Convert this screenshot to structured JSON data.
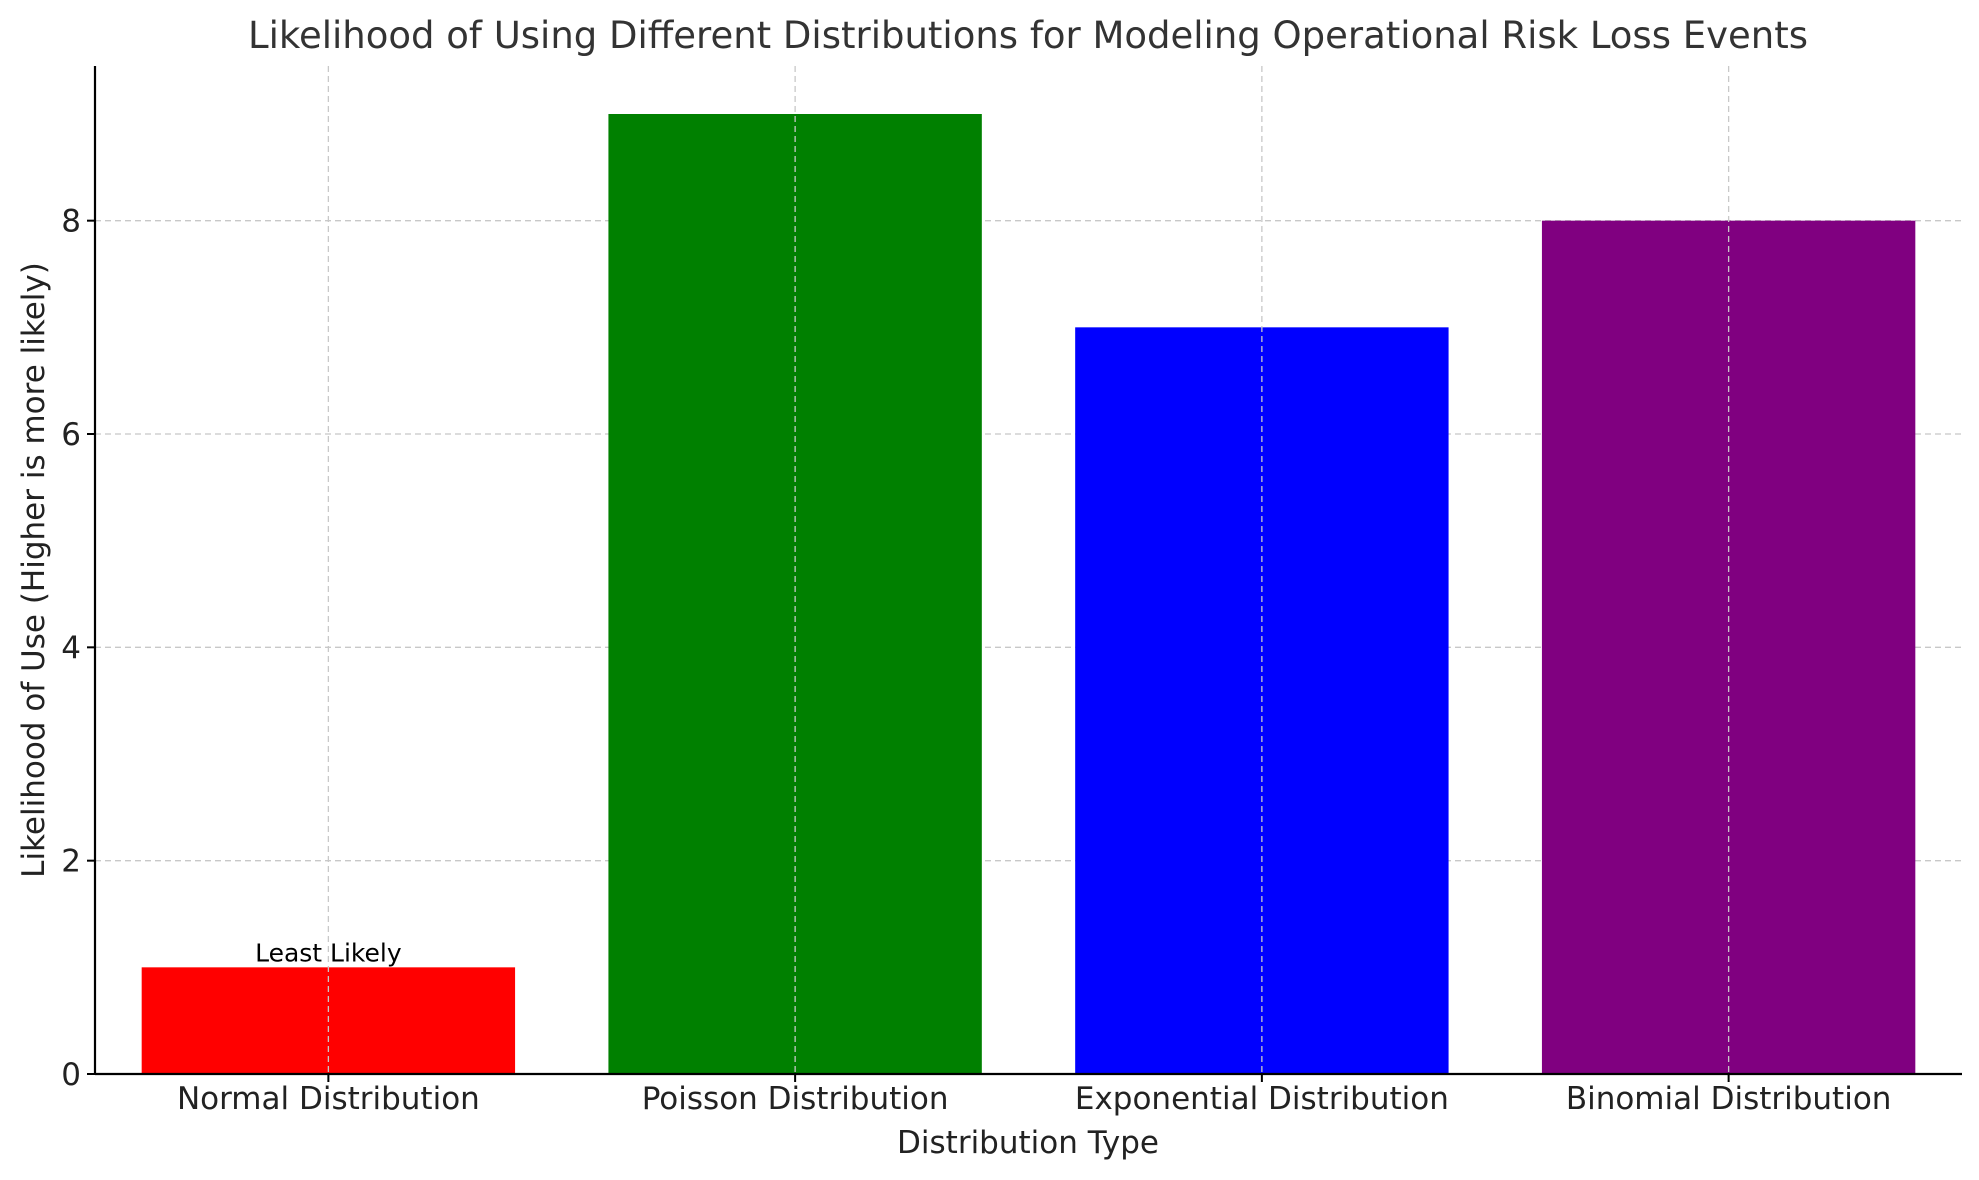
{
  "chart_data": {
    "type": "bar",
    "title": "Likelihood of Using Different Distributions for Modeling Operational Risk Loss Events",
    "xlabel": "Distribution Type",
    "ylabel": "Likelihood of Use (Higher is more likely)",
    "categories": [
      "Normal Distribution",
      "Poisson Distribution",
      "Exponential Distribution",
      "Binomial Distribution"
    ],
    "values": [
      1,
      9,
      7,
      8
    ],
    "colors": [
      "#ff0000",
      "#008000",
      "#0000ff",
      "#800080"
    ],
    "ylim": [
      0,
      9.45
    ],
    "yticks": [
      0,
      2,
      4,
      6,
      8
    ],
    "grid": true,
    "annotations": [
      {
        "category": "Normal Distribution",
        "text": "Least Likely"
      }
    ]
  }
}
